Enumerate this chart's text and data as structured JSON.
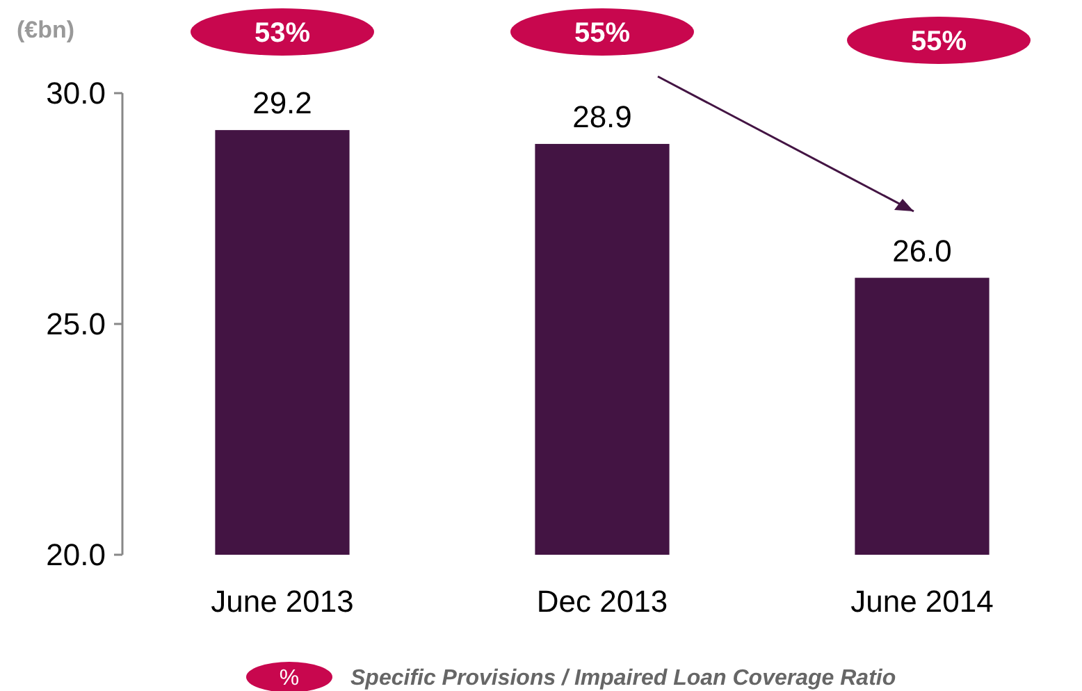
{
  "chart_data": {
    "type": "bar",
    "ylabel": "(€bn)",
    "categories": [
      "June 2013",
      "Dec 2013",
      "June 2014"
    ],
    "values": [
      29.2,
      28.9,
      26.0
    ],
    "value_labels": [
      "29.2",
      "28.9",
      "26.0"
    ],
    "color": "#431443",
    "ylim": [
      20,
      30
    ],
    "yticks": [
      {
        "value": 20,
        "label": "20.0"
      },
      {
        "value": 25,
        "label": "25.0"
      },
      {
        "value": 30,
        "label": "30.0"
      }
    ],
    "grid": false,
    "annotations": [
      "53%",
      "55%",
      "55%",
      "%",
      "Specific Provisions / Impaired Loan Coverage Ratio"
    ]
  }
}
